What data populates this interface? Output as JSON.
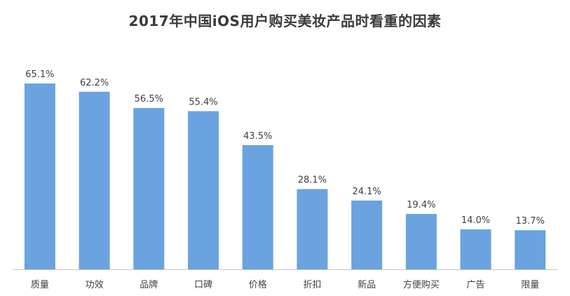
{
  "chart_data": {
    "type": "bar",
    "title": "2017年中国iOS用户购买美妆产品时看重的因素",
    "xlabel": "",
    "ylabel": "",
    "categories": [
      "质量",
      "功效",
      "品牌",
      "口碑",
      "价格",
      "折扣",
      "新品",
      "方便购买",
      "广告",
      "限量"
    ],
    "values": [
      65.1,
      62.2,
      56.5,
      55.4,
      43.5,
      28.1,
      24.1,
      19.4,
      14.0,
      13.7
    ],
    "value_labels": [
      "65.1%",
      "62.2%",
      "56.5%",
      "55.4%",
      "43.5%",
      "28.1%",
      "24.1%",
      "19.4%",
      "14.0%",
      "13.7%"
    ],
    "ylim": [
      0,
      70
    ],
    "grid": false,
    "legend": "none",
    "bar_color": "#6aa3e0",
    "axis_color": "#c8c8c8"
  }
}
